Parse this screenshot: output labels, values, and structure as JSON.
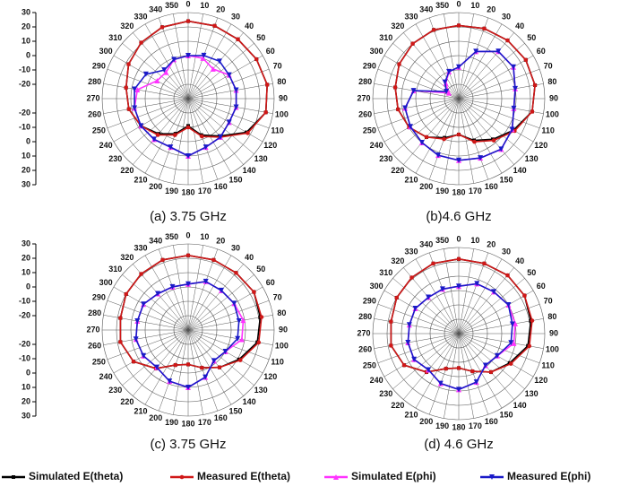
{
  "chart_data": [
    {
      "type": "polar",
      "title": "(a) 3.75 GHz",
      "raxis": true,
      "theta": [
        0,
        20,
        40,
        60,
        80,
        100,
        120,
        140,
        160,
        180,
        200,
        220,
        240,
        260,
        280,
        300,
        320,
        340
      ],
      "thetaticks": [
        0,
        10,
        20,
        30,
        40,
        50,
        60,
        70,
        80,
        90,
        100,
        110,
        120,
        130,
        140,
        150,
        160,
        170,
        180,
        190,
        200,
        210,
        220,
        230,
        240,
        250,
        260,
        270,
        280,
        290,
        300,
        310,
        320,
        330,
        340,
        350
      ],
      "rlim": [
        -30,
        30
      ],
      "rticks": [
        -20,
        -10,
        0,
        10,
        20,
        30
      ],
      "series": [
        {
          "name": "Simulated E(theta)",
          "color": "#000000",
          "marker": "square",
          "values": [
            24,
            24,
            24,
            25,
            26,
            25,
            17,
            4,
            -3,
            -11,
            -4,
            2,
            8,
            12,
            14,
            18,
            21,
            23
          ]
        },
        {
          "name": "Measured E(theta)",
          "color": "#d01818",
          "marker": "circle",
          "values": [
            24,
            24,
            24,
            25,
            26,
            25,
            18,
            5,
            -2,
            -10,
            -3,
            3,
            8,
            12,
            14,
            18,
            21,
            23
          ]
        },
        {
          "name": "Simulated E(phi)",
          "color": "#ff33ff",
          "marker": "triangle",
          "values": [
            0,
            0,
            -3,
            3,
            4,
            4,
            3,
            5,
            6,
            10,
            6,
            7,
            8,
            8,
            6,
            -5,
            -6,
            -1
          ]
        },
        {
          "name": "Measured  E(phi)",
          "color": "#1a1ac8",
          "marker": "triangle-down",
          "values": [
            0,
            2,
            4,
            3,
            4,
            4,
            3,
            5,
            6,
            10,
            6,
            7,
            8,
            8,
            8,
            4,
            -4,
            -1
          ]
        }
      ]
    },
    {
      "type": "polar",
      "title": "(b)4.6 GHz",
      "raxis": false,
      "theta": [
        0,
        20,
        40,
        60,
        80,
        100,
        120,
        140,
        160,
        180,
        200,
        220,
        240,
        260,
        280,
        300,
        320,
        340
      ],
      "thetaticks": [
        0,
        10,
        20,
        30,
        40,
        50,
        60,
        70,
        80,
        90,
        100,
        110,
        120,
        130,
        140,
        150,
        160,
        170,
        180,
        190,
        200,
        210,
        220,
        230,
        240,
        250,
        260,
        270,
        280,
        290,
        300,
        310,
        320,
        330,
        340,
        350
      ],
      "rlim": [
        -30,
        30
      ],
      "rticks": [
        -20,
        -10,
        0,
        10,
        20,
        30
      ],
      "series": [
        {
          "color": "#000000",
          "marker": "square",
          "values": [
            21,
            22,
            23,
            24,
            24,
            22,
            14,
            7,
            1,
            -5,
            -1,
            5,
            10,
            13,
            15,
            18,
            20,
            21
          ]
        },
        {
          "color": "#d01818",
          "marker": "circle",
          "values": [
            21,
            22,
            23,
            24,
            24,
            22,
            15,
            8,
            2,
            -5,
            0,
            5,
            10,
            13,
            15,
            18,
            20,
            21
          ]
        },
        {
          "color": "#ff33ff",
          "marker": "triangle",
          "values": [
            -8,
            5,
            13,
            14,
            10,
            9,
            13,
            16,
            14,
            13,
            12,
            10,
            9,
            8,
            2,
            -22,
            -16,
            -10
          ]
        },
        {
          "color": "#1a1ac8",
          "marker": "triangle-down",
          "values": [
            -8,
            5,
            13,
            14,
            10,
            9,
            13,
            16,
            14,
            13,
            12,
            10,
            9,
            8,
            2,
            -20,
            -15,
            -10
          ]
        }
      ]
    },
    {
      "type": "polar",
      "title": "(c) 3.75 GHz",
      "raxis": true,
      "theta": [
        0,
        20,
        40,
        60,
        80,
        100,
        120,
        140,
        160,
        180,
        200,
        220,
        240,
        260,
        280,
        300,
        320,
        340
      ],
      "thetaticks": [
        0,
        10,
        20,
        30,
        40,
        50,
        60,
        70,
        80,
        90,
        100,
        110,
        120,
        130,
        140,
        150,
        160,
        170,
        180,
        190,
        200,
        210,
        220,
        230,
        240,
        250,
        260,
        270,
        280,
        290,
        300,
        310,
        320,
        330,
        340,
        350
      ],
      "rlim": [
        -30,
        30
      ],
      "rticks": [
        -20,
        -10,
        0,
        10,
        20,
        30
      ],
      "series": [
        {
          "color": "#000000",
          "marker": "square",
          "values": [
            22,
            22,
            22,
            23,
            21,
            19,
            11,
            4,
            -2,
            -6,
            -4,
            5,
            14,
            18,
            18,
            20,
            21,
            22
          ]
        },
        {
          "color": "#d01818",
          "marker": "circle",
          "values": [
            22,
            22,
            22,
            23,
            22,
            20,
            12,
            4,
            -2,
            -6,
            -4,
            5,
            14,
            18,
            18,
            20,
            21,
            22
          ]
        },
        {
          "color": "#ff33ff",
          "marker": "triangle",
          "values": [
            2,
            6,
            6,
            7,
            9,
            8,
            0,
            -2,
            5,
            10,
            8,
            4,
            6,
            7,
            6,
            6,
            3,
            2
          ]
        },
        {
          "color": "#1a1ac8",
          "marker": "triangle-down",
          "values": [
            2,
            6,
            6,
            7,
            6,
            5,
            0,
            -2,
            5,
            10,
            8,
            4,
            6,
            7,
            6,
            6,
            3,
            2
          ]
        }
      ]
    },
    {
      "type": "polar",
      "title": "(d) 4.6 GHz",
      "raxis": false,
      "theta": [
        0,
        20,
        40,
        60,
        80,
        100,
        120,
        140,
        160,
        180,
        200,
        220,
        240,
        260,
        280,
        300,
        320,
        340
      ],
      "thetaticks": [
        0,
        10,
        20,
        30,
        40,
        50,
        60,
        70,
        80,
        90,
        100,
        110,
        120,
        130,
        140,
        150,
        160,
        170,
        180,
        190,
        200,
        210,
        220,
        230,
        240,
        250,
        260,
        270,
        280,
        290,
        300,
        310,
        320,
        330,
        340,
        350
      ],
      "rlim": [
        -30,
        30
      ],
      "rticks": [
        -20,
        -10,
        0,
        10,
        20,
        30
      ],
      "series": [
        {
          "color": "#000000",
          "marker": "square",
          "values": [
            22,
            22,
            23,
            23,
            21,
            19,
            11,
            5,
            -2,
            -6,
            -4,
            5,
            14,
            18,
            18,
            20,
            21,
            22
          ]
        },
        {
          "color": "#d01818",
          "marker": "circle",
          "values": [
            22,
            22,
            23,
            23,
            22,
            20,
            12,
            5,
            -2,
            -6,
            -4,
            5,
            14,
            18,
            18,
            20,
            21,
            22
          ]
        },
        {
          "color": "#ff33ff",
          "marker": "triangle",
          "values": [
            3,
            7,
            8,
            10,
            10,
            9,
            1,
            -1,
            6,
            9,
            7,
            3,
            6,
            6,
            5,
            5,
            3,
            3
          ]
        },
        {
          "color": "#1a1ac8",
          "marker": "triangle-down",
          "values": [
            3,
            7,
            8,
            10,
            8,
            7,
            1,
            -1,
            6,
            9,
            7,
            3,
            6,
            6,
            5,
            5,
            3,
            3
          ]
        }
      ]
    }
  ]
}
